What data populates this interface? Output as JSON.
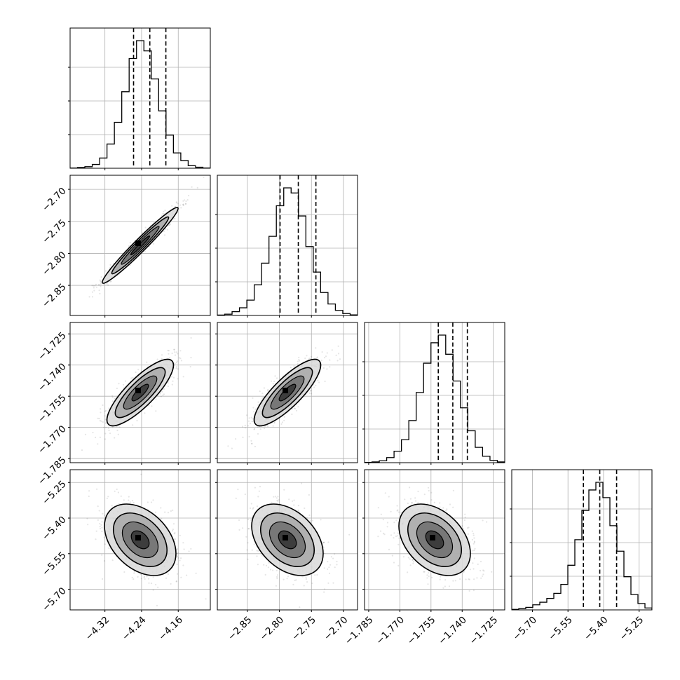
{
  "chart_data": {
    "type": "corner",
    "parameters": [
      {
        "ticks": [
          -4.32,
          -4.24,
          -4.16
        ],
        "tick_labels": [
          "−4.32",
          "−4.24",
          "−4.16"
        ],
        "range": [
          -4.396,
          -4.09
        ],
        "quantiles": [
          -4.2575,
          -4.222,
          -4.187
        ]
      },
      {
        "ticks": [
          -2.85,
          -2.8,
          -2.75,
          -2.7
        ],
        "tick_labels": [
          "−2.85",
          "−2.80",
          "−2.75",
          "−2.70"
        ],
        "range": [
          -2.897,
          -2.678
        ],
        "quantiles": [
          -2.799,
          -2.7705,
          -2.743
        ]
      },
      {
        "ticks": [
          -1.785,
          -1.77,
          -1.755,
          -1.74,
          -1.725
        ],
        "tick_labels": [
          "−1.785",
          "−1.770",
          "−1.755",
          "−1.740",
          "−1.725"
        ],
        "range": [
          -1.787,
          -1.7195
        ],
        "quantiles": [
          -1.7515,
          -1.7445,
          -1.7375
        ]
      },
      {
        "ticks": [
          -5.7,
          -5.55,
          -5.4,
          -5.25
        ],
        "tick_labels": [
          "−5.70",
          "−5.55",
          "−5.40",
          "−5.25"
        ],
        "range": [
          -5.787,
          -5.196
        ],
        "quantiles": [
          -5.485,
          -5.416,
          -5.345
        ]
      }
    ],
    "histograms": [
      [
        0.002,
        0.006,
        0.012,
        0.03,
        0.08,
        0.19,
        0.36,
        0.6,
        0.86,
        1.0,
        0.92,
        0.7,
        0.45,
        0.26,
        0.12,
        0.06,
        0.02,
        0.008,
        0.002
      ],
      [
        0.003,
        0.01,
        0.03,
        0.06,
        0.12,
        0.24,
        0.41,
        0.62,
        0.86,
        1.0,
        0.96,
        0.78,
        0.54,
        0.34,
        0.18,
        0.09,
        0.04,
        0.015,
        0.005
      ],
      [
        0.002,
        0.006,
        0.015,
        0.04,
        0.09,
        0.18,
        0.33,
        0.55,
        0.78,
        0.94,
        1.0,
        0.85,
        0.64,
        0.43,
        0.25,
        0.12,
        0.05,
        0.018,
        0.006
      ],
      [
        0.004,
        0.01,
        0.02,
        0.04,
        0.06,
        0.09,
        0.13,
        0.2,
        0.35,
        0.55,
        0.78,
        0.94,
        1.0,
        0.88,
        0.66,
        0.46,
        0.26,
        0.12,
        0.05,
        0.015
      ]
    ],
    "correlations": {
      "1-0": 0.97,
      "2-0": 0.88,
      "2-1": 0.9,
      "3-0": -0.6,
      "3-1": -0.6,
      "3-2": -0.55
    },
    "grid": true,
    "ytick_labels_left_column_only": true
  }
}
